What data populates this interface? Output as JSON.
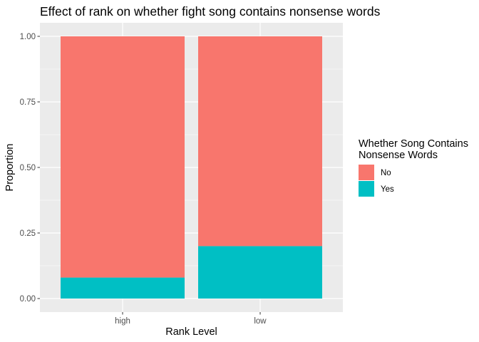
{
  "chart_data": {
    "type": "bar",
    "stacked": true,
    "title": "Effect of rank on whether fight song contains nonsense words",
    "xlabel": "Rank Level",
    "ylabel": "Proportion",
    "categories": [
      "high",
      "low"
    ],
    "ylim": [
      0,
      1
    ],
    "yticks": [
      0.0,
      0.25,
      0.5,
      0.75,
      1.0
    ],
    "ytick_labels": [
      "0.00",
      "0.25",
      "0.50",
      "0.75",
      "1.00"
    ],
    "series": [
      {
        "name": "Yes",
        "values": [
          0.08,
          0.2
        ],
        "color": "#00BFC4"
      },
      {
        "name": "No",
        "values": [
          0.92,
          0.8
        ],
        "color": "#F8766D"
      }
    ],
    "legend": {
      "title_lines": [
        "Whether Song Contains",
        "Nonsense Words"
      ],
      "entries": [
        {
          "label": "No",
          "color": "#F8766D"
        },
        {
          "label": "Yes",
          "color": "#00BFC4"
        }
      ],
      "position": "right"
    },
    "grid": true,
    "panel_background": "#EBEBEB",
    "grid_color": "#FFFFFF"
  }
}
